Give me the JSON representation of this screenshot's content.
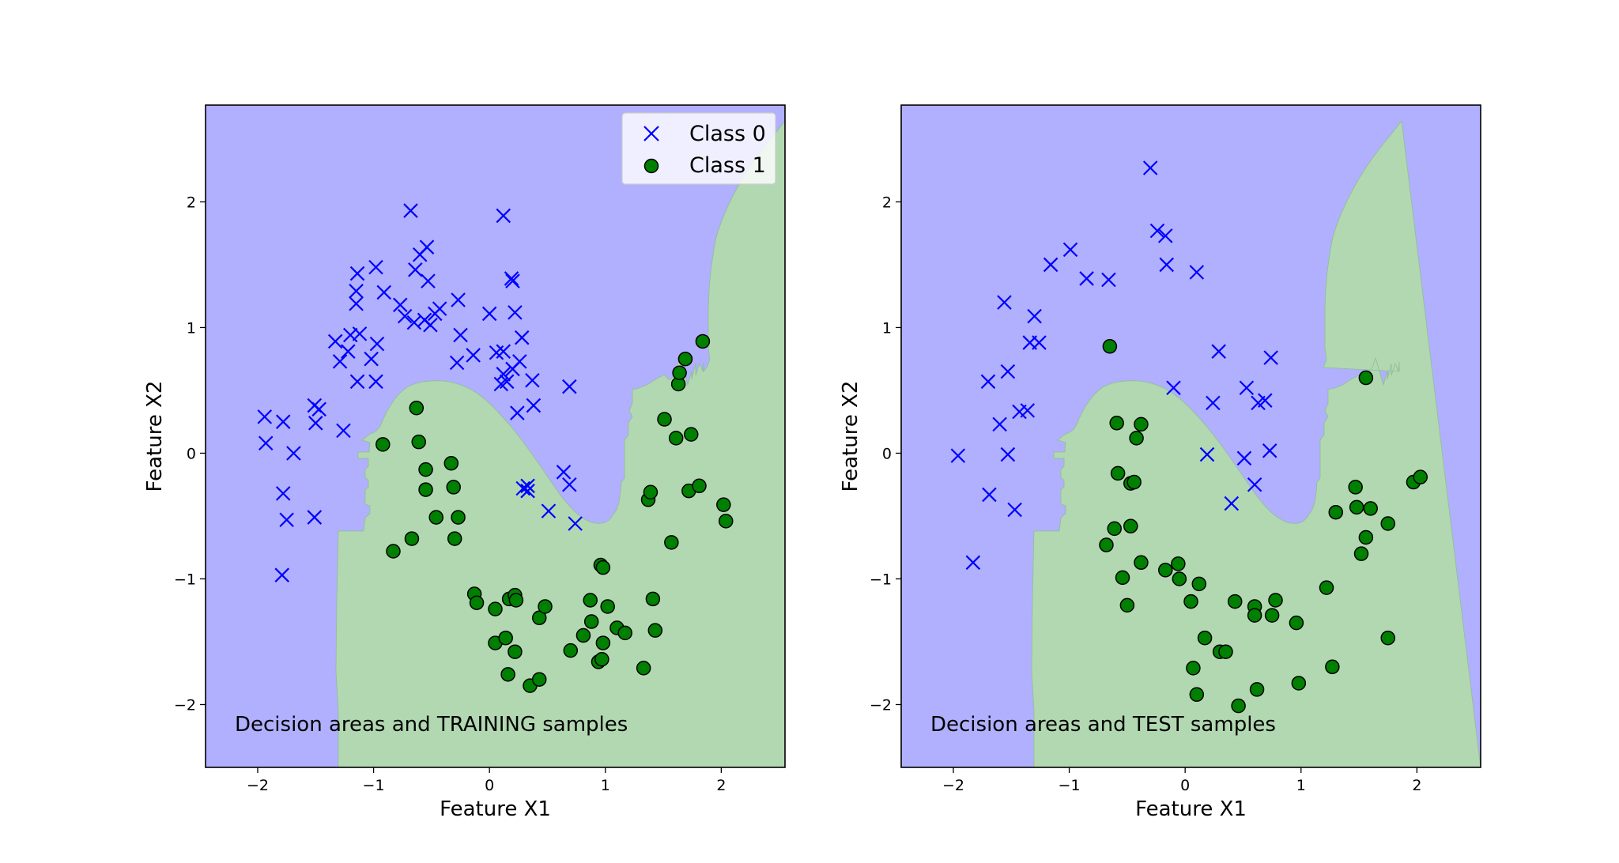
{
  "colors": {
    "region_class_0": "#b0b0ff",
    "region_class_1": "#b2d8b2",
    "marker_class_0": "#0000ff",
    "marker_class_1": "#008000",
    "marker_edge_class_1": "#000000"
  },
  "legend": {
    "entries": [
      "Class 0",
      "Class 1"
    ]
  },
  "chart_data": [
    {
      "type": "scatter",
      "title": "",
      "annotation": "Decision areas and TRAINING samples",
      "xlabel": "Feature X1",
      "ylabel": "Feature X2",
      "xlim": [
        -2.45,
        2.55
      ],
      "ylim": [
        -2.5,
        2.77
      ],
      "xticks": [
        -2,
        -1,
        0,
        1,
        2
      ],
      "yticks": [
        -2,
        -1,
        0,
        1,
        2
      ],
      "xtick_labels": [
        "−2",
        "−1",
        "0",
        "1",
        "2"
      ],
      "ytick_labels": [
        "−2",
        "−1",
        "0",
        "1",
        "2"
      ],
      "legend": "top-right",
      "series": [
        {
          "name": "Class 0",
          "marker": "x",
          "points": [
            [
              -1.94,
              0.29
            ],
            [
              -1.93,
              0.08
            ],
            [
              -1.78,
              0.25
            ],
            [
              -1.69,
              0.0
            ],
            [
              -1.78,
              -0.32
            ],
            [
              -1.75,
              -0.53
            ],
            [
              -1.79,
              -0.97
            ],
            [
              -1.51,
              -0.51
            ],
            [
              -1.51,
              0.38
            ],
            [
              -1.47,
              0.35
            ],
            [
              -1.5,
              0.24
            ],
            [
              -1.26,
              0.18
            ],
            [
              -1.33,
              0.89
            ],
            [
              -1.29,
              0.73
            ],
            [
              -1.22,
              0.81
            ],
            [
              -1.2,
              0.94
            ],
            [
              -1.15,
              1.29
            ],
            [
              -1.14,
              1.43
            ],
            [
              -1.15,
              1.19
            ],
            [
              -1.12,
              0.95
            ],
            [
              -1.14,
              0.57
            ],
            [
              -1.02,
              0.75
            ],
            [
              -0.98,
              1.48
            ],
            [
              -0.97,
              0.87
            ],
            [
              -0.98,
              0.57
            ],
            [
              -0.91,
              1.28
            ],
            [
              -0.77,
              1.18
            ],
            [
              -0.73,
              1.09
            ],
            [
              -0.68,
              1.93
            ],
            [
              -0.64,
              1.46
            ],
            [
              -0.6,
              1.58
            ],
            [
              -0.54,
              1.64
            ],
            [
              -0.65,
              1.04
            ],
            [
              -0.56,
              1.06
            ],
            [
              -0.51,
              1.02
            ],
            [
              -0.47,
              1.11
            ],
            [
              -0.53,
              1.37
            ],
            [
              -0.43,
              1.15
            ],
            [
              -0.27,
              1.22
            ],
            [
              -0.25,
              0.94
            ],
            [
              -0.14,
              0.78
            ],
            [
              0.0,
              1.11
            ],
            [
              0.06,
              0.8
            ],
            [
              0.12,
              1.89
            ],
            [
              0.12,
              0.81
            ],
            [
              0.12,
              0.63
            ],
            [
              0.15,
              0.57
            ],
            [
              0.2,
              0.67
            ],
            [
              0.19,
              1.39
            ],
            [
              0.2,
              1.37
            ],
            [
              0.22,
              1.12
            ],
            [
              0.24,
              0.32
            ],
            [
              0.26,
              0.73
            ],
            [
              0.28,
              0.92
            ],
            [
              0.29,
              -0.28
            ],
            [
              0.33,
              -0.26
            ],
            [
              0.37,
              0.58
            ],
            [
              0.38,
              0.38
            ],
            [
              0.51,
              -0.46
            ],
            [
              0.64,
              -0.15
            ],
            [
              0.69,
              0.53
            ],
            [
              0.69,
              -0.25
            ],
            [
              0.74,
              -0.56
            ],
            [
              0.33,
              -0.3
            ],
            [
              -0.28,
              0.72
            ],
            [
              0.1,
              0.55
            ]
          ]
        },
        {
          "name": "Class 1",
          "marker": "o",
          "points": [
            [
              -0.92,
              0.07
            ],
            [
              -0.63,
              0.36
            ],
            [
              -0.61,
              0.09
            ],
            [
              -0.55,
              -0.13
            ],
            [
              -0.55,
              -0.29
            ],
            [
              -0.33,
              -0.08
            ],
            [
              -0.31,
              -0.27
            ],
            [
              -0.27,
              -0.51
            ],
            [
              -0.46,
              -0.51
            ],
            [
              -0.3,
              -0.68
            ],
            [
              -0.67,
              -0.68
            ],
            [
              -0.83,
              -0.78
            ],
            [
              -0.13,
              -1.12
            ],
            [
              -0.11,
              -1.19
            ],
            [
              0.05,
              -1.24
            ],
            [
              0.05,
              -1.51
            ],
            [
              0.14,
              -1.47
            ],
            [
              0.17,
              -1.16
            ],
            [
              0.22,
              -1.13
            ],
            [
              0.23,
              -1.17
            ],
            [
              0.22,
              -1.58
            ],
            [
              0.16,
              -1.76
            ],
            [
              0.35,
              -1.85
            ],
            [
              0.43,
              -1.8
            ],
            [
              0.43,
              -1.31
            ],
            [
              0.48,
              -1.22
            ],
            [
              0.81,
              -1.45
            ],
            [
              0.87,
              -1.17
            ],
            [
              0.88,
              -1.34
            ],
            [
              0.94,
              -1.66
            ],
            [
              0.97,
              -1.64
            ],
            [
              0.98,
              -1.51
            ],
            [
              1.02,
              -1.22
            ],
            [
              1.1,
              -1.39
            ],
            [
              1.17,
              -1.43
            ],
            [
              0.7,
              -1.57
            ],
            [
              0.96,
              -0.89
            ],
            [
              0.98,
              -0.91
            ],
            [
              1.33,
              -1.71
            ],
            [
              1.41,
              -1.16
            ],
            [
              1.43,
              -1.41
            ],
            [
              1.37,
              -0.37
            ],
            [
              1.39,
              -0.31
            ],
            [
              1.51,
              0.27
            ],
            [
              1.57,
              -0.71
            ],
            [
              1.61,
              0.12
            ],
            [
              1.63,
              0.55
            ],
            [
              1.64,
              0.64
            ],
            [
              1.69,
              0.75
            ],
            [
              1.72,
              -0.3
            ],
            [
              1.74,
              0.15
            ],
            [
              1.81,
              -0.26
            ],
            [
              1.84,
              0.89
            ],
            [
              2.02,
              -0.41
            ],
            [
              2.04,
              -0.54
            ]
          ]
        }
      ]
    },
    {
      "type": "scatter",
      "title": "",
      "annotation": "Decision areas and TEST samples",
      "xlabel": "Feature X1",
      "ylabel": "Feature X2",
      "xlim": [
        -2.45,
        2.55
      ],
      "ylim": [
        -2.5,
        2.77
      ],
      "xticks": [
        -2,
        -1,
        0,
        1,
        2
      ],
      "yticks": [
        -2,
        -1,
        0,
        1,
        2
      ],
      "xtick_labels": [
        "−2",
        "−1",
        "0",
        "1",
        "2"
      ],
      "ytick_labels": [
        "−2",
        "−1",
        "0",
        "1",
        "2"
      ],
      "series": [
        {
          "name": "Class 0",
          "marker": "x",
          "points": [
            [
              -1.96,
              -0.02
            ],
            [
              -1.83,
              -0.87
            ],
            [
              -1.7,
              0.57
            ],
            [
              -1.69,
              -0.33
            ],
            [
              -1.6,
              0.23
            ],
            [
              -1.56,
              1.2
            ],
            [
              -1.53,
              0.65
            ],
            [
              -1.53,
              -0.01
            ],
            [
              -1.47,
              -0.45
            ],
            [
              -1.43,
              0.33
            ],
            [
              -1.36,
              0.34
            ],
            [
              -1.34,
              0.88
            ],
            [
              -1.3,
              1.09
            ],
            [
              -1.26,
              0.88
            ],
            [
              -1.16,
              1.5
            ],
            [
              -0.99,
              1.62
            ],
            [
              -0.85,
              1.39
            ],
            [
              -0.66,
              1.38
            ],
            [
              -0.3,
              2.27
            ],
            [
              -0.24,
              1.77
            ],
            [
              -0.17,
              1.73
            ],
            [
              -0.16,
              1.5
            ],
            [
              -0.1,
              0.52
            ],
            [
              0.1,
              1.44
            ],
            [
              0.19,
              -0.01
            ],
            [
              0.24,
              0.4
            ],
            [
              0.29,
              0.81
            ],
            [
              0.4,
              -0.4
            ],
            [
              0.51,
              -0.04
            ],
            [
              0.53,
              0.52
            ],
            [
              0.6,
              -0.25
            ],
            [
              0.63,
              0.4
            ],
            [
              0.69,
              0.42
            ],
            [
              0.73,
              0.02
            ],
            [
              0.74,
              0.76
            ]
          ]
        },
        {
          "name": "Class 1",
          "marker": "o",
          "points": [
            [
              -0.65,
              0.85
            ],
            [
              -0.59,
              0.24
            ],
            [
              -0.58,
              -0.16
            ],
            [
              -0.42,
              0.12
            ],
            [
              -0.38,
              0.23
            ],
            [
              -0.47,
              -0.24
            ],
            [
              -0.44,
              -0.23
            ],
            [
              -0.47,
              -0.58
            ],
            [
              -0.61,
              -0.6
            ],
            [
              -0.68,
              -0.73
            ],
            [
              -0.54,
              -0.99
            ],
            [
              -0.5,
              -1.21
            ],
            [
              -0.38,
              -0.87
            ],
            [
              -0.17,
              -0.93
            ],
            [
              -0.06,
              -0.88
            ],
            [
              -0.05,
              -1.0
            ],
            [
              0.05,
              -1.18
            ],
            [
              0.12,
              -1.04
            ],
            [
              0.17,
              -1.47
            ],
            [
              0.07,
              -1.71
            ],
            [
              0.1,
              -1.92
            ],
            [
              0.3,
              -1.58
            ],
            [
              0.35,
              -1.58
            ],
            [
              0.43,
              -1.18
            ],
            [
              0.6,
              -1.22
            ],
            [
              0.6,
              -1.29
            ],
            [
              0.62,
              -1.88
            ],
            [
              0.46,
              -2.01
            ],
            [
              0.75,
              -1.29
            ],
            [
              0.78,
              -1.17
            ],
            [
              0.96,
              -1.35
            ],
            [
              0.98,
              -1.83
            ],
            [
              1.22,
              -1.07
            ],
            [
              1.27,
              -1.7
            ],
            [
              1.3,
              -0.47
            ],
            [
              1.47,
              -0.27
            ],
            [
              1.48,
              -0.43
            ],
            [
              1.52,
              -0.8
            ],
            [
              1.56,
              -0.67
            ],
            [
              1.6,
              -0.44
            ],
            [
              1.56,
              0.6
            ],
            [
              1.75,
              -0.56
            ],
            [
              1.75,
              -1.47
            ],
            [
              1.97,
              -0.23
            ],
            [
              2.03,
              -0.19
            ]
          ]
        }
      ]
    }
  ]
}
